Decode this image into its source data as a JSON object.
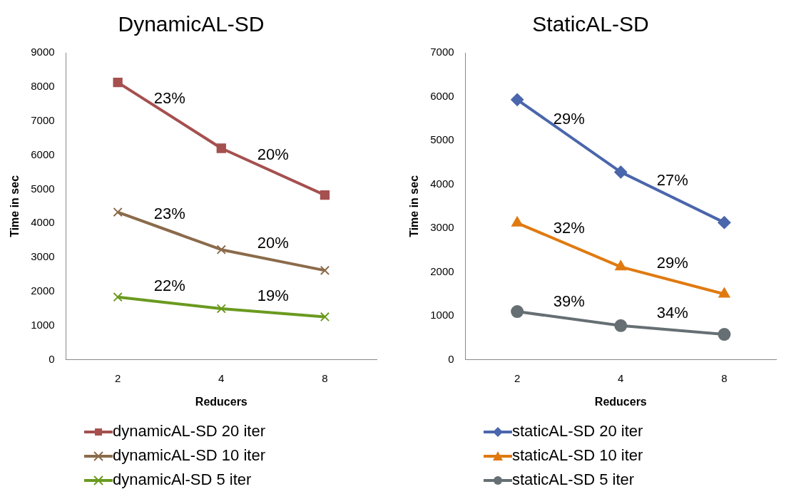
{
  "chart_data": [
    {
      "type": "line",
      "title": "DynamicAL-SD",
      "xlabel": "Reducers",
      "ylabel": "Time in sec",
      "categories": [
        "2",
        "4",
        "8"
      ],
      "ylim": [
        0,
        9000
      ],
      "yticks": [
        0,
        1000,
        2000,
        3000,
        4000,
        5000,
        6000,
        7000,
        8000,
        9000
      ],
      "legend": "bottom",
      "series": [
        {
          "name": "dynamicAL-SD 20 iter",
          "color": "#a5504f",
          "marker": "square",
          "values": [
            8130,
            6200,
            4830
          ]
        },
        {
          "name": "dynamicAL-SD 10 iter",
          "color": "#8b6b4b",
          "marker": "cross",
          "values": [
            4330,
            3230,
            2620
          ]
        },
        {
          "name": "dynamicAl-SD 5 iter",
          "color": "#6a9a1f",
          "marker": "cross",
          "values": [
            1840,
            1500,
            1260
          ]
        }
      ],
      "annotations": [
        "23%",
        "20%",
        "23%",
        "20%",
        "22%",
        "19%"
      ]
    },
    {
      "type": "line",
      "title": "StaticAL-SD",
      "xlabel": "Reducers",
      "ylabel": "Time in sec",
      "categories": [
        "2",
        "4",
        "8"
      ],
      "ylim": [
        0,
        7000
      ],
      "yticks": [
        0,
        1000,
        2000,
        3000,
        4000,
        5000,
        6000,
        7000
      ],
      "legend": "bottom",
      "series": [
        {
          "name": "staticAL-SD 20 iter",
          "color": "#4a66ac",
          "marker": "diamond",
          "values": [
            5930,
            4280,
            3130
          ]
        },
        {
          "name": "staticAL-SD 10 iter",
          "color": "#e07a10",
          "marker": "triangle",
          "values": [
            3120,
            2120,
            1500
          ]
        },
        {
          "name": "staticAL-SD 5 iter",
          "color": "#666f73",
          "marker": "circle",
          "values": [
            1100,
            780,
            580
          ]
        }
      ],
      "annotations": [
        "29%",
        "27%",
        "32%",
        "29%",
        "39%",
        "34%"
      ]
    }
  ]
}
